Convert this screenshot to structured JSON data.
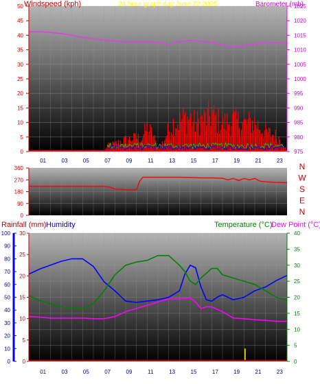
{
  "header": {
    "left_title": "Windspeed (kph)",
    "center_title": "24 hour graph day  June 22 2025",
    "right_title": "Barometer (mb)"
  },
  "labels": {
    "rainfall": "Rainfall (mm)",
    "humidity": "Humidity",
    "temperature": "Temperature (°C)",
    "dew_point": "Dew Point (°C)"
  },
  "colors": {
    "wind": "#ff0000",
    "gust_green": "#00cc00",
    "gust_blue": "#0000ff",
    "barometer": "#e040e0",
    "direction": "#ff0000",
    "humidity": "#0000ff",
    "temperature": "#008000",
    "dew_point": "#ff00ff",
    "rain": "#ffff00",
    "axis_red": "#cc0000",
    "axis_green": "#008000",
    "header_yellow": "#ffff00"
  },
  "chart_data": [
    {
      "id": "wind-baro",
      "type": "line",
      "x_ticks": [
        "01",
        "03",
        "05",
        "07",
        "09",
        "11",
        "13",
        "15",
        "17",
        "19",
        "21",
        "23"
      ],
      "left_axis": {
        "ticks": [
          0,
          5,
          10,
          15,
          20,
          25,
          30,
          35,
          40,
          45,
          50
        ],
        "ylim": [
          0,
          50
        ]
      },
      "right_axis": {
        "ticks": [
          975,
          980,
          985,
          990,
          995,
          1000,
          1005,
          1010,
          1015,
          1020,
          1025
        ],
        "ylim": [
          975,
          1025
        ]
      },
      "barometer": {
        "x": [
          0,
          1,
          2,
          3,
          4,
          5,
          6,
          7,
          8,
          9,
          10,
          11,
          12,
          12.5,
          13,
          13.5,
          14,
          14.5,
          15,
          16,
          17,
          17.5,
          18,
          18.5,
          19,
          20,
          21,
          22,
          23,
          24
        ],
        "y": [
          1016.2,
          1016.2,
          1016,
          1015.6,
          1015,
          1014.3,
          1013.8,
          1013.3,
          1013,
          1012.8,
          1012.7,
          1012.8,
          1012.6,
          1012.2,
          1011.8,
          1012.3,
          1012.8,
          1013.1,
          1013.2,
          1012.9,
          1012.6,
          1012.1,
          1011.6,
          1011.2,
          1011.1,
          1011.4,
          1012,
          1012.4,
          1012.5,
          1012.2
        ]
      },
      "wind_profile": {
        "x": [
          0,
          7,
          7.3,
          8,
          9,
          10,
          10.5,
          11,
          11.5,
          12,
          12.5,
          13,
          13.5,
          14,
          14.5,
          15,
          15.5,
          16,
          16.5,
          17,
          17.5,
          18,
          19,
          20,
          21,
          22,
          23,
          23.5,
          24
        ],
        "max_gust": [
          0,
          0,
          3,
          4,
          6,
          7,
          7,
          12,
          9,
          2,
          5,
          11,
          15,
          15,
          17,
          17,
          14,
          16,
          17,
          19,
          16,
          14,
          16,
          14,
          15,
          10,
          8,
          6,
          0
        ]
      }
    },
    {
      "id": "wind-direction",
      "type": "line",
      "x_ticks": [
        "01",
        "03",
        "05",
        "07",
        "09",
        "11",
        "13",
        "15",
        "17",
        "19",
        "21",
        "23"
      ],
      "left_axis": {
        "ticks": [
          0,
          90,
          180,
          270,
          360
        ],
        "ylim": [
          0,
          360
        ]
      },
      "right_axis_labels": [
        "N",
        "W",
        "S",
        "E",
        "N"
      ],
      "direction": {
        "x": [
          0,
          7,
          7.5,
          8,
          9,
          10,
          10.3,
          10.6,
          11,
          12,
          13,
          14,
          15,
          16,
          17,
          18,
          18.5,
          19,
          19.5,
          20,
          20.5,
          21,
          21.5,
          22,
          23,
          24
        ],
        "y": [
          220,
          220,
          215,
          200,
          195,
          195,
          260,
          290,
          290,
          290,
          290,
          290,
          288,
          285,
          285,
          282,
          270,
          280,
          265,
          280,
          270,
          280,
          260,
          255,
          250,
          248
        ]
      }
    },
    {
      "id": "temp-hum-rain",
      "type": "line",
      "x_ticks": [
        "01",
        "03",
        "05",
        "07",
        "09",
        "11",
        "13",
        "15",
        "17",
        "19",
        "21",
        "23"
      ],
      "humidity_axis": {
        "ticks": [
          0,
          10,
          20,
          30,
          40,
          50,
          60,
          70,
          80,
          90,
          100
        ],
        "ylim": [
          0,
          100
        ]
      },
      "rain_axis": {
        "ticks": [
          0,
          5,
          10,
          15,
          20,
          25,
          30
        ],
        "ylim": [
          0,
          30
        ]
      },
      "temp_axis": {
        "ticks": [
          0,
          5,
          10,
          15,
          20,
          25,
          30,
          35,
          40
        ],
        "ylim": [
          0,
          40
        ]
      },
      "series": [
        {
          "name": "Humidity",
          "x": [
            0,
            1,
            2,
            3,
            4,
            5,
            6,
            7,
            8,
            9,
            10,
            11,
            12,
            13,
            14,
            14.5,
            15,
            15.5,
            16,
            16.5,
            17,
            17.5,
            18,
            19,
            20,
            21,
            22,
            23,
            24
          ],
          "y": [
            68,
            72,
            75,
            78,
            80,
            80,
            74,
            62,
            55,
            47,
            46,
            47,
            48,
            50,
            55,
            68,
            75,
            73,
            58,
            48,
            47,
            50,
            52,
            48,
            50,
            55,
            58,
            63,
            67
          ]
        },
        {
          "name": "Temperature",
          "x": [
            0,
            1,
            2,
            3,
            4,
            5,
            6,
            7,
            8,
            9,
            10,
            11,
            12,
            13,
            14,
            14.5,
            15,
            15.5,
            16,
            17,
            17.5,
            18,
            19,
            20,
            21,
            22,
            23,
            24
          ],
          "y": [
            20.5,
            19,
            18,
            17,
            16.5,
            16.5,
            18,
            22,
            27,
            30,
            31,
            31.5,
            33,
            33,
            30,
            28,
            25,
            24,
            26,
            29,
            29,
            27,
            26,
            25,
            24,
            22,
            20,
            19
          ]
        },
        {
          "name": "Dew Point",
          "x": [
            0,
            1,
            2,
            3,
            4,
            5,
            6,
            7,
            8,
            9,
            10,
            11,
            12,
            13,
            14,
            15,
            15.5,
            16,
            16.5,
            17,
            18,
            19,
            20,
            21,
            22,
            23,
            24
          ],
          "y": [
            14,
            13.8,
            13.5,
            13.5,
            13.5,
            13.5,
            13.3,
            13.3,
            14,
            15.5,
            16.5,
            17.5,
            18.5,
            19.5,
            19.5,
            19.8,
            18.5,
            16.5,
            17,
            17,
            15.5,
            13.5,
            13.3,
            13,
            12.8,
            12.5,
            12.5
          ]
        }
      ],
      "rain": {
        "x": [
          20.1
        ],
        "y": [
          3
        ]
      }
    }
  ]
}
